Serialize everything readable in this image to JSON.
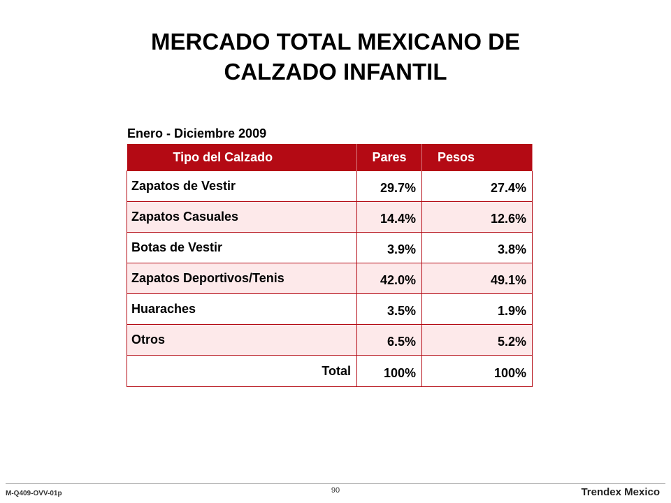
{
  "slide": {
    "title_line1": "MERCADO TOTAL MEXICANO DE",
    "title_line2": "CALZADO INFANTIL",
    "subtitle": "Enero - Diciembre 2009"
  },
  "table": {
    "headers": [
      "Tipo del Calzado",
      "Pares",
      "Pesos"
    ],
    "rows": [
      {
        "label": "Zapatos de Vestir",
        "pares": "29.7%",
        "pesos": "27.4%"
      },
      {
        "label": "Zapatos Casuales",
        "pares": "14.4%",
        "pesos": "12.6%"
      },
      {
        "label": "Botas de Vestir",
        "pares": "3.9%",
        "pesos": "3.8%"
      },
      {
        "label": "Zapatos Deportivos/Tenis",
        "pares": "42.0%",
        "pesos": "49.1%"
      },
      {
        "label": "Huaraches",
        "pares": "3.5%",
        "pesos": "1.9%"
      },
      {
        "label": "Otros",
        "pares": "6.5%",
        "pesos": "5.2%"
      }
    ],
    "total": {
      "label": "Total",
      "pares": "100%",
      "pesos": "100%"
    }
  },
  "footer": {
    "doc_code": "M-Q409-OVV-01p",
    "page_number": "90",
    "brand": "Trendex Mexico"
  },
  "colors": {
    "header_bg": "#b40a14",
    "row_alt_bg": "#fde9ea"
  }
}
